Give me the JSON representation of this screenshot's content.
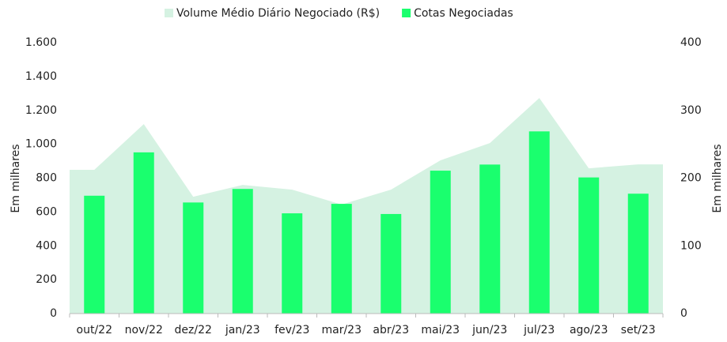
{
  "chart_data": {
    "type": "bar+area",
    "categories": [
      "out/22",
      "nov/22",
      "dez/22",
      "jan/23",
      "fev/23",
      "mar/23",
      "abr/23",
      "mai/23",
      "jun/23",
      "jul/23",
      "ago/23",
      "set/23"
    ],
    "series": [
      {
        "name": "Volume Médio Diário Negociado (R$)",
        "type": "area",
        "color": "#d5f2e2",
        "axis": "y",
        "values": [
          849,
          1119,
          690,
          760,
          732,
          644,
          732,
          905,
          1007,
          1273,
          858,
          881
        ]
      },
      {
        "name": "Cotas Negociadas",
        "type": "bar",
        "color": "#1aff6e",
        "axis": "y2",
        "values": [
          174,
          238,
          164,
          184,
          148,
          162,
          147,
          211,
          220,
          269,
          201,
          177
        ]
      }
    ],
    "ylim": [
      0,
      1600
    ],
    "yticks": [
      0,
      200,
      400,
      600,
      800,
      {
        "value": 1000,
        "label": "1.000"
      },
      {
        "value": 1200,
        "label": "1.200"
      },
      {
        "value": 1400,
        "label": "1.400"
      },
      {
        "value": 1600,
        "label": "1.600"
      }
    ],
    "y2lim": [
      0,
      400
    ],
    "y2ticks": [
      0,
      100,
      200,
      300,
      400
    ],
    "ylabel": "Em milhares",
    "y2label": "Em milhares",
    "legend": "top"
  }
}
